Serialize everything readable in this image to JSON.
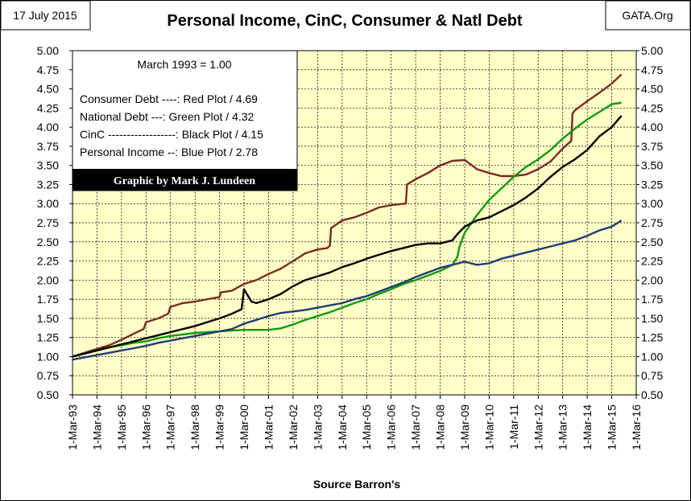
{
  "header": {
    "date_label": "17 July 2015",
    "title": "Personal Income, CinC, Consumer & Natl Debt",
    "source_tag": "GATA.Org"
  },
  "legend": {
    "base_note": "March 1993 = 1.00",
    "entries": [
      "Consumer Debt ----: Red Plot / 4.69",
      "National Debt ---:  Green Plot / 4.32",
      "CinC ------------------:  Black Plot / 4.15",
      "Personal Income --: Blue Plot / 2.78"
    ],
    "credit": "Graphic by Mark J. Lundeen"
  },
  "footer": {
    "source": "Source Barron's"
  },
  "colors": {
    "plot_bg": "#ffffc8",
    "consumer_debt": "#7b2a22",
    "national_debt": "#119911",
    "cinc": "#000000",
    "personal_income": "#1f3b73",
    "credit_bg": "#000000"
  },
  "chart_data": {
    "type": "line",
    "title": "Personal Income, CinC, Consumer & Natl Debt",
    "xlabel": "Source Barron's",
    "ylabel": "",
    "x_ticks": [
      "1-Mar-93",
      "1-Mar-94",
      "1-Mar-95",
      "1-Mar-96",
      "1-Mar-97",
      "1-Mar-98",
      "1-Mar-99",
      "1-Mar-00",
      "1-Mar-01",
      "1-Mar-02",
      "1-Mar-03",
      "1-Mar-04",
      "1-Mar-05",
      "1-Mar-06",
      "1-Mar-07",
      "1-Mar-08",
      "1-Mar-09",
      "1-Mar-10",
      "1-Mar-11",
      "1-Mar-12",
      "1-Mar-13",
      "1-Mar-14",
      "1-Mar-15",
      "1-Mar-16"
    ],
    "y_ticks": [
      "0.50",
      "0.75",
      "1.00",
      "1.25",
      "1.50",
      "1.75",
      "2.00",
      "2.25",
      "2.50",
      "2.75",
      "3.00",
      "3.25",
      "3.50",
      "3.75",
      "4.00",
      "4.25",
      "4.50",
      "4.75",
      "5.00"
    ],
    "xlim": [
      1993.0,
      2016.0
    ],
    "ylim": [
      0.5,
      5.0
    ],
    "grid": true,
    "legend_position": "top-left",
    "series": [
      {
        "key": "consumer_debt",
        "x": [
          1993.0,
          1993.5,
          1994.0,
          1994.5,
          1995.0,
          1995.5,
          1995.9,
          1996.0,
          1996.5,
          1996.9,
          1997.0,
          1997.5,
          1998.0,
          1998.5,
          1999.0,
          1999.05,
          1999.5,
          2000.0,
          2000.5,
          2001.0,
          2001.5,
          2002.0,
          2002.5,
          2003.0,
          2003.4,
          2003.5,
          2003.55,
          2004.0,
          2004.5,
          2005.0,
          2005.5,
          2006.0,
          2006.6,
          2006.65,
          2007.0,
          2007.5,
          2008.0,
          2008.5,
          2009.0,
          2009.3,
          2009.5,
          2010.0,
          2010.5,
          2011.0,
          2011.5,
          2012.0,
          2012.5,
          2013.0,
          2013.35,
          2013.4,
          2013.5,
          2014.0,
          2014.5,
          2015.0,
          2015.4
        ],
        "y": [
          1.0,
          1.05,
          1.1,
          1.15,
          1.22,
          1.3,
          1.36,
          1.45,
          1.5,
          1.56,
          1.65,
          1.7,
          1.72,
          1.75,
          1.78,
          1.84,
          1.86,
          1.95,
          2.0,
          2.08,
          2.15,
          2.25,
          2.35,
          2.4,
          2.42,
          2.45,
          2.68,
          2.78,
          2.82,
          2.88,
          2.95,
          2.98,
          3.0,
          3.25,
          3.32,
          3.4,
          3.5,
          3.56,
          3.57,
          3.5,
          3.45,
          3.4,
          3.36,
          3.36,
          3.38,
          3.45,
          3.55,
          3.72,
          3.82,
          4.18,
          4.22,
          4.34,
          4.45,
          4.57,
          4.69
        ]
      },
      {
        "key": "national_debt",
        "x": [
          1993.0,
          1993.5,
          1994.0,
          1994.5,
          1995.0,
          1995.5,
          1996.0,
          1996.5,
          1997.0,
          1997.5,
          1998.0,
          1998.5,
          1999.0,
          1999.5,
          2000.0,
          2000.5,
          2001.0,
          2001.5,
          2002.0,
          2002.5,
          2003.0,
          2003.5,
          2004.0,
          2004.5,
          2005.0,
          2005.5,
          2006.0,
          2006.5,
          2007.0,
          2007.5,
          2008.0,
          2008.5,
          2008.7,
          2008.8,
          2009.0,
          2009.5,
          2010.0,
          2010.5,
          2011.0,
          2011.5,
          2012.0,
          2012.5,
          2013.0,
          2013.5,
          2014.0,
          2014.5,
          2015.0,
          2015.4
        ],
        "y": [
          1.0,
          1.04,
          1.08,
          1.12,
          1.15,
          1.18,
          1.2,
          1.24,
          1.27,
          1.29,
          1.31,
          1.32,
          1.33,
          1.34,
          1.35,
          1.35,
          1.35,
          1.37,
          1.42,
          1.48,
          1.53,
          1.58,
          1.64,
          1.7,
          1.75,
          1.82,
          1.88,
          1.95,
          2.0,
          2.06,
          2.12,
          2.2,
          2.3,
          2.45,
          2.62,
          2.85,
          3.05,
          3.2,
          3.35,
          3.48,
          3.58,
          3.7,
          3.85,
          3.98,
          4.1,
          4.2,
          4.3,
          4.32
        ]
      },
      {
        "key": "cinc",
        "x": [
          1993.0,
          1993.5,
          1994.0,
          1994.5,
          1995.0,
          1995.5,
          1996.0,
          1996.5,
          1997.0,
          1997.5,
          1998.0,
          1998.5,
          1999.0,
          1999.5,
          1999.9,
          2000.0,
          2000.3,
          2000.5,
          2001.0,
          2001.5,
          2002.0,
          2002.5,
          2003.0,
          2003.5,
          2004.0,
          2004.5,
          2005.0,
          2005.5,
          2006.0,
          2006.5,
          2007.0,
          2007.5,
          2008.0,
          2008.5,
          2008.7,
          2009.0,
          2009.5,
          2010.0,
          2010.5,
          2011.0,
          2011.5,
          2012.0,
          2012.5,
          2013.0,
          2013.5,
          2014.0,
          2014.5,
          2015.0,
          2015.4
        ],
        "y": [
          1.0,
          1.04,
          1.08,
          1.12,
          1.16,
          1.2,
          1.24,
          1.28,
          1.32,
          1.36,
          1.4,
          1.45,
          1.5,
          1.56,
          1.62,
          1.88,
          1.72,
          1.7,
          1.75,
          1.82,
          1.92,
          2.0,
          2.05,
          2.1,
          2.17,
          2.22,
          2.28,
          2.33,
          2.38,
          2.42,
          2.46,
          2.48,
          2.48,
          2.52,
          2.6,
          2.7,
          2.78,
          2.82,
          2.9,
          2.98,
          3.08,
          3.2,
          3.35,
          3.48,
          3.58,
          3.7,
          3.88,
          4.0,
          4.15
        ]
      },
      {
        "key": "personal_income",
        "x": [
          1993.0,
          1993.5,
          1994.0,
          1994.5,
          1995.0,
          1995.5,
          1996.0,
          1996.5,
          1997.0,
          1997.5,
          1998.0,
          1998.5,
          1999.0,
          1999.5,
          2000.0,
          2000.5,
          2001.0,
          2001.5,
          2002.0,
          2002.5,
          2003.0,
          2003.5,
          2004.0,
          2004.5,
          2005.0,
          2005.5,
          2006.0,
          2006.5,
          2007.0,
          2007.5,
          2008.0,
          2008.5,
          2009.0,
          2009.5,
          2010.0,
          2010.5,
          2011.0,
          2011.5,
          2012.0,
          2012.5,
          2013.0,
          2013.5,
          2014.0,
          2014.5,
          2015.0,
          2015.4
        ],
        "y": [
          0.96,
          0.99,
          1.02,
          1.05,
          1.08,
          1.11,
          1.14,
          1.18,
          1.21,
          1.24,
          1.27,
          1.3,
          1.33,
          1.36,
          1.43,
          1.48,
          1.53,
          1.57,
          1.59,
          1.61,
          1.64,
          1.67,
          1.7,
          1.75,
          1.79,
          1.85,
          1.91,
          1.97,
          2.04,
          2.1,
          2.16,
          2.2,
          2.24,
          2.2,
          2.22,
          2.28,
          2.32,
          2.36,
          2.4,
          2.44,
          2.48,
          2.52,
          2.58,
          2.65,
          2.7,
          2.78
        ]
      }
    ]
  }
}
